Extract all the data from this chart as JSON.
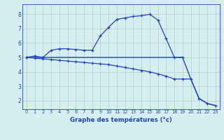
{
  "hours": [
    0,
    1,
    2,
    3,
    4,
    5,
    6,
    7,
    8,
    9,
    10,
    11,
    12,
    13,
    14,
    15,
    16,
    17,
    18,
    19,
    20,
    21,
    22,
    23
  ],
  "line1": [
    5.0,
    5.1,
    5.0,
    5.5,
    5.6,
    5.6,
    5.55,
    5.5,
    5.5,
    6.5,
    7.1,
    7.65,
    7.75,
    7.85,
    7.9,
    8.0,
    7.6,
    6.3,
    5.0,
    5.0,
    null,
    null,
    null,
    null
  ],
  "line2": [
    5.0,
    4.95,
    4.9,
    4.85,
    4.8,
    4.75,
    4.7,
    4.65,
    4.6,
    4.55,
    4.5,
    4.4,
    4.3,
    4.2,
    4.1,
    4.0,
    3.85,
    3.7,
    3.5,
    3.5,
    3.5,
    2.15,
    1.8,
    1.65
  ],
  "line3": [
    5.0,
    5.0,
    5.0,
    5.0,
    5.0,
    5.0,
    5.0,
    5.0,
    5.0,
    5.0,
    5.0,
    5.0,
    5.0,
    5.0,
    5.0,
    5.0,
    5.0,
    5.0,
    5.0,
    5.0,
    3.5,
    2.15,
    1.8,
    1.65
  ],
  "line_color": "#2244bb",
  "bg_color": "#d5eef0",
  "grid_color": "#b0cccc",
  "xlabel": "Graphe des températures (°c)",
  "ylim_min": 1.4,
  "ylim_max": 8.7,
  "yticks": [
    2,
    3,
    4,
    5,
    6,
    7,
    8
  ],
  "xticks": [
    0,
    1,
    2,
    3,
    4,
    5,
    6,
    7,
    8,
    9,
    10,
    11,
    12,
    13,
    14,
    15,
    16,
    17,
    18,
    19,
    20,
    21,
    22,
    23
  ],
  "figw": 3.2,
  "figh": 2.0,
  "dpi": 100
}
